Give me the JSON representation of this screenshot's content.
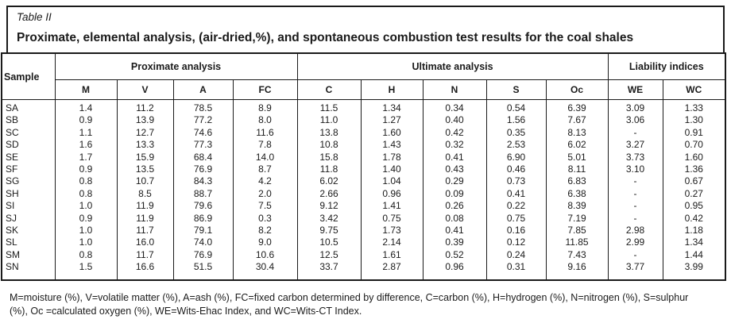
{
  "header": {
    "table_label": "Table II",
    "title": "Proximate, elemental analysis, (air-dried,%), and spontaneous combustion test results for the coal shales"
  },
  "table": {
    "sample_header": "Sample",
    "groups": [
      {
        "label": "Proximate analysis",
        "columns": [
          "M",
          "V",
          "A",
          "FC"
        ]
      },
      {
        "label": "Ultimate analysis",
        "columns": [
          "C",
          "H",
          "N",
          "S",
          "Oc"
        ]
      },
      {
        "label": "Liability indices",
        "columns": [
          "WE",
          "WC"
        ]
      }
    ],
    "rows": [
      {
        "sample": "SA",
        "values": [
          "1.4",
          "11.2",
          "78.5",
          "8.9",
          "11.5",
          "1.34",
          "0.34",
          "0.54",
          "6.39",
          "3.09",
          "1.33"
        ]
      },
      {
        "sample": "SB",
        "values": [
          "0.9",
          "13.9",
          "77.2",
          "8.0",
          "11.0",
          "1.27",
          "0.40",
          "1.56",
          "7.67",
          "3.06",
          "1.30"
        ]
      },
      {
        "sample": "SC",
        "values": [
          "1.1",
          "12.7",
          "74.6",
          "11.6",
          "13.8",
          "1.60",
          "0.42",
          "0.35",
          "8.13",
          "-",
          "0.91"
        ]
      },
      {
        "sample": "SD",
        "values": [
          "1.6",
          "13.3",
          "77.3",
          "7.8",
          "10.8",
          "1.43",
          "0.32",
          "2.53",
          "6.02",
          "3.27",
          "0.70"
        ]
      },
      {
        "sample": "SE",
        "values": [
          "1.7",
          "15.9",
          "68.4",
          "14.0",
          "15.8",
          "1.78",
          "0.41",
          "6.90",
          "5.01",
          "3.73",
          "1.60"
        ]
      },
      {
        "sample": "SF",
        "values": [
          "0.9",
          "13.5",
          "76.9",
          "8.7",
          "11.8",
          "1.40",
          "0.43",
          "0.46",
          "8.11",
          "3.10",
          "1.36"
        ]
      },
      {
        "sample": "SG",
        "values": [
          "0.8",
          "10.7",
          "84.3",
          "4.2",
          "6.02",
          "1.04",
          "0.29",
          "0.73",
          "6.83",
          "-",
          "0.67"
        ]
      },
      {
        "sample": "SH",
        "values": [
          "0.8",
          "8.5",
          "88.7",
          "2.0",
          "2.66",
          "0.96",
          "0.09",
          "0.41",
          "6.38",
          "-",
          "0.27"
        ]
      },
      {
        "sample": "SI",
        "values": [
          "1.0",
          "11.9",
          "79.6",
          "7.5",
          "9.12",
          "1.41",
          "0.26",
          "0.22",
          "8.39",
          "-",
          "0.95"
        ]
      },
      {
        "sample": "SJ",
        "values": [
          "0.9",
          "11.9",
          "86.9",
          "0.3",
          "3.42",
          "0.75",
          "0.08",
          "0.75",
          "7.19",
          "-",
          "0.42"
        ]
      },
      {
        "sample": "SK",
        "values": [
          "1.0",
          "11.7",
          "79.1",
          "8.2",
          "9.75",
          "1.73",
          "0.41",
          "0.16",
          "7.85",
          "2.98",
          "1.18"
        ]
      },
      {
        "sample": "SL",
        "values": [
          "1.0",
          "16.0",
          "74.0",
          "9.0",
          "10.5",
          "2.14",
          "0.39",
          "0.12",
          "11.85",
          "2.99",
          "1.34"
        ]
      },
      {
        "sample": "SM",
        "values": [
          "0.8",
          "11.7",
          "76.9",
          "10.6",
          "12.5",
          "1.61",
          "0.52",
          "0.24",
          "7.43",
          "-",
          "1.44"
        ]
      },
      {
        "sample": "SN",
        "values": [
          "1.5",
          "16.6",
          "51.5",
          "30.4",
          "33.7",
          "2.87",
          "0.96",
          "0.31",
          "9.16",
          "3.77",
          "3.99"
        ]
      }
    ]
  },
  "footnote": {
    "line1": "M=moisture (%), V=volatile matter (%), A=ash (%), FC=fixed carbon determined by difference, C=carbon (%), H=hydrogen (%), N=nitrogen (%), S=sulphur",
    "line2": "(%), Oc =calculated oxygen (%), WE=Wits-Ehac Index, and WC=Wits-CT Index."
  },
  "colors": {
    "border": "#1a1a1a",
    "text": "#1b1b1b",
    "background": "#ffffff"
  }
}
